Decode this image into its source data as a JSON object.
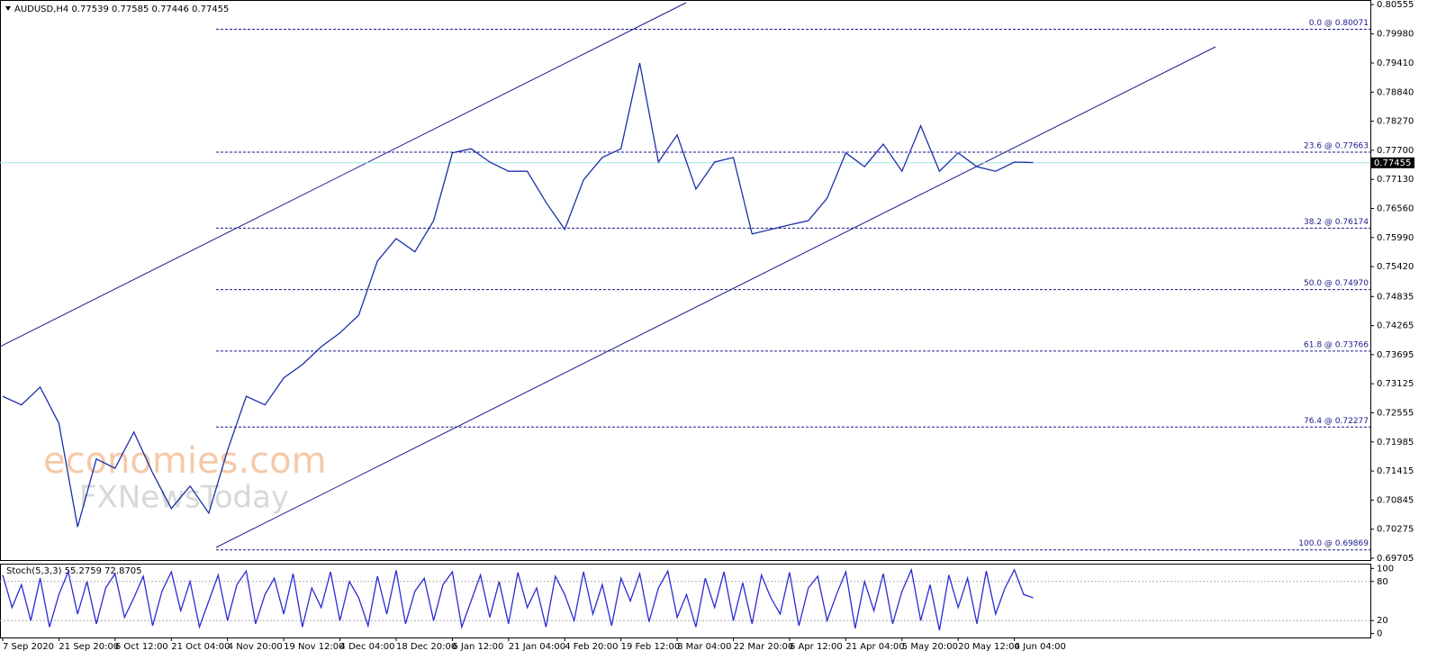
{
  "chart_data": [
    {
      "type": "line",
      "title": "AUDUSD,H4  0.77539 0.77585 0.77446 0.77455",
      "color": "#1c2fa8",
      "categories": [
        "7 Sep 2020",
        null,
        null,
        "21 Sep 20:00",
        null,
        null,
        "6 Oct 12:00",
        null,
        null,
        "21 Oct 04:00",
        null,
        null,
        "4 Nov 20:00",
        null,
        null,
        "19 Nov 12:00",
        null,
        null,
        "4 Dec 04:00",
        null,
        null,
        "18 Dec 20:00",
        null,
        null,
        "6 Jan 12:00",
        null,
        null,
        "21 Jan 04:00",
        null,
        null,
        "4 Feb 20:00",
        null,
        null,
        "19 Feb 12:00",
        null,
        null,
        "8 Mar 04:00",
        null,
        null,
        "22 Mar 20:00",
        null,
        null,
        "6 Apr 12:00",
        null,
        null,
        "21 Apr 04:00",
        null,
        null,
        "5 May 20:00",
        null,
        null,
        "20 May 12:00",
        null,
        null,
        "4 Jun 04:00",
        null,
        null,
        null,
        null,
        null,
        null,
        null,
        null,
        null,
        null,
        null,
        null,
        null,
        null,
        null,
        null,
        null,
        null,
        null
      ],
      "values": [
        0.7288,
        0.7271,
        0.7306,
        0.7235,
        0.7032,
        0.7165,
        0.7147,
        0.7218,
        0.7138,
        0.7068,
        0.7112,
        0.7059,
        0.7182,
        0.7288,
        0.7271,
        0.7324,
        0.735,
        0.7385,
        0.7412,
        0.7447,
        0.7553,
        0.7597,
        0.7571,
        0.7632,
        0.7765,
        0.7773,
        0.7747,
        0.7729,
        0.7729,
        0.7668,
        0.7615,
        0.7712,
        0.7756,
        0.7773,
        0.7941,
        0.7747,
        0.78,
        0.7694,
        0.7747,
        0.7756,
        0.7606,
        0.7615,
        0.7624,
        0.7632,
        0.7676,
        0.7765,
        0.7738,
        0.7782,
        0.7729,
        0.7818,
        0.7729,
        0.7765,
        0.7738,
        0.7729,
        0.7747,
        0.7746,
        null,
        null,
        null,
        null,
        null,
        null,
        null,
        null,
        null,
        null,
        null,
        null,
        null,
        null,
        null,
        null,
        null,
        null
      ],
      "ylim": [
        0.6967,
        0.8061
      ],
      "yticks": [
        0.80555,
        {
          "value": 0.7998,
          "label": "0.79980"
        },
        {
          "value": 0.7941,
          "label": "0.79410"
        },
        {
          "value": 0.7884,
          "label": "0.78840"
        },
        {
          "value": 0.7827,
          "label": "0.78270"
        },
        {
          "value": 0.777,
          "label": "0.77700"
        },
        {
          "value": 0.7713,
          "label": "0.77130"
        },
        {
          "value": 0.7656,
          "label": "0.76560"
        },
        {
          "value": 0.7599,
          "label": "0.75990"
        },
        {
          "value": 0.7542,
          "label": "0.75420"
        },
        0.74835,
        0.74265,
        0.73695,
        0.73125,
        0.72555,
        0.71985,
        0.71415,
        0.70845,
        0.70275,
        0.69705
      ],
      "current_price": 0.77455,
      "fib_levels": [
        {
          "value": 0.80071,
          "label": "0.0 @ 0.80071"
        },
        {
          "value": 0.77663,
          "label": "23.6 @ 0.77663"
        },
        {
          "value": 0.76174,
          "label": "38.2 @ 0.76174"
        },
        {
          "value": 0.7497,
          "label": "50.0 @ 0.74970"
        },
        {
          "value": 0.73766,
          "label": "61.8 @ 0.73766"
        },
        {
          "value": 0.72277,
          "label": "76.4 @ 0.72277"
        },
        {
          "value": 0.69869,
          "label": "100.0 @ 0.69869"
        }
      ],
      "watermark": [
        "economies.com",
        "FXNewsToday"
      ]
    },
    {
      "type": "line",
      "title": "Stoch(5,3,3) 55.2759 72.8705",
      "color": "#2b2bd6",
      "values": [
        90,
        40,
        75,
        20,
        85,
        10,
        60,
        95,
        30,
        80,
        15,
        70,
        92,
        25,
        55,
        88,
        12,
        65,
        95,
        35,
        80,
        10,
        50,
        90,
        20,
        75,
        96,
        15,
        60,
        85,
        30,
        92,
        10,
        70,
        40,
        95,
        20,
        80,
        55,
        12,
        88,
        30,
        97,
        15,
        65,
        85,
        20,
        75,
        95,
        10,
        50,
        90,
        25,
        80,
        15,
        94,
        40,
        70,
        10,
        88,
        60,
        20,
        95,
        30,
        75,
        12,
        85,
        50,
        92,
        18,
        70,
        96,
        25,
        60,
        10,
        85,
        40,
        95,
        20,
        78,
        15,
        90,
        55,
        30,
        94,
        12,
        70,
        88,
        20,
        60,
        95,
        8,
        80,
        35,
        92,
        15,
        65,
        98,
        20,
        75,
        5,
        90,
        40,
        85,
        15,
        96,
        30,
        70,
        98,
        60,
        55
      ],
      "ylim": [
        -6,
        106
      ],
      "yticks": [
        0,
        20,
        80,
        100
      ],
      "levels": [
        20,
        80
      ]
    }
  ]
}
